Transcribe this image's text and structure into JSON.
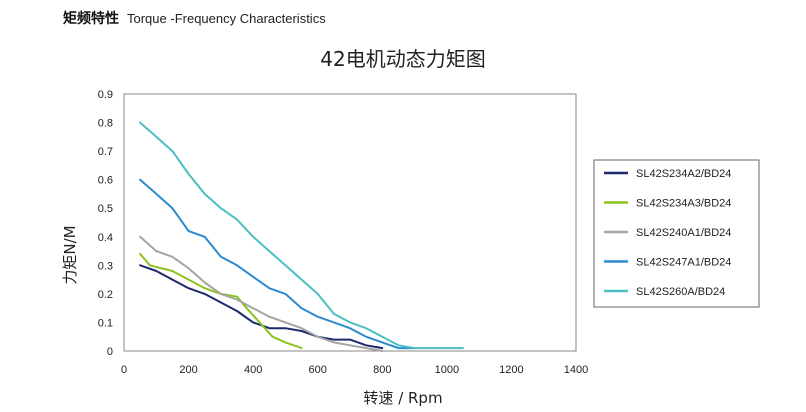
{
  "header": {
    "title_cn": "矩频特性",
    "title_en": "Torque -Frequency Characteristics"
  },
  "chart_data": {
    "type": "line",
    "title": "42电机动态力矩图",
    "xlabel": "转速 / Rpm",
    "ylabel": "力矩N/M",
    "xlim": [
      0,
      1400
    ],
    "ylim": [
      0,
      0.9
    ],
    "xticks": [
      0,
      200,
      400,
      600,
      800,
      1000,
      1200,
      1400
    ],
    "yticks": [
      0,
      0.1,
      0.2,
      0.3,
      0.4,
      0.5,
      0.6,
      0.7,
      0.8,
      0.9
    ],
    "xtick_labels": [
      "0",
      "200",
      "400",
      "600",
      "800",
      "1000",
      "1200",
      "1400"
    ],
    "ytick_labels": [
      "0",
      "0.1",
      "0.2",
      "0.3",
      "0.4",
      "0.5",
      "0.6",
      "0.7",
      "0.8",
      "0.9"
    ],
    "grid": false,
    "legend_position": "right",
    "series": [
      {
        "name": "SL42S234A2/BD24",
        "color": "#1c2a6b",
        "x": [
          50,
          100,
          150,
          200,
          250,
          300,
          350,
          400,
          450,
          500,
          550,
          600,
          650,
          700,
          750,
          800
        ],
        "y": [
          0.3,
          0.28,
          0.25,
          0.22,
          0.2,
          0.17,
          0.14,
          0.1,
          0.08,
          0.08,
          0.07,
          0.05,
          0.04,
          0.04,
          0.02,
          0.01
        ]
      },
      {
        "name": "SL42S234A3/BD24",
        "color": "#8cc21f",
        "x": [
          50,
          80,
          150,
          200,
          250,
          300,
          350,
          380,
          420,
          460,
          500,
          550
        ],
        "y": [
          0.34,
          0.3,
          0.28,
          0.25,
          0.22,
          0.2,
          0.19,
          0.15,
          0.1,
          0.05,
          0.03,
          0.01
        ]
      },
      {
        "name": "SL42S240A1/BD24",
        "color": "#a4a4a4",
        "x": [
          50,
          100,
          150,
          200,
          250,
          300,
          350,
          400,
          450,
          500,
          550,
          600,
          650,
          700,
          750,
          800
        ],
        "y": [
          0.4,
          0.35,
          0.33,
          0.29,
          0.24,
          0.2,
          0.18,
          0.15,
          0.12,
          0.1,
          0.08,
          0.05,
          0.03,
          0.02,
          0.01,
          0.0
        ]
      },
      {
        "name": "SL42S247A1/BD24",
        "color": "#2a8bd0",
        "x": [
          50,
          100,
          150,
          200,
          250,
          300,
          350,
          400,
          450,
          500,
          550,
          600,
          650,
          700,
          750,
          800,
          850,
          900
        ],
        "y": [
          0.6,
          0.55,
          0.5,
          0.42,
          0.4,
          0.33,
          0.3,
          0.26,
          0.22,
          0.2,
          0.15,
          0.12,
          0.1,
          0.08,
          0.05,
          0.03,
          0.01,
          0.01
        ]
      },
      {
        "name": "SL42S260A/BD24",
        "color": "#4bbfc0",
        "x": [
          50,
          100,
          150,
          200,
          250,
          300,
          350,
          400,
          450,
          500,
          550,
          600,
          650,
          700,
          750,
          800,
          850,
          900,
          950,
          1000,
          1050
        ],
        "y": [
          0.8,
          0.75,
          0.7,
          0.62,
          0.55,
          0.5,
          0.46,
          0.4,
          0.35,
          0.3,
          0.25,
          0.2,
          0.13,
          0.1,
          0.08,
          0.05,
          0.02,
          0.01,
          0.01,
          0.01,
          0.01
        ]
      }
    ]
  }
}
